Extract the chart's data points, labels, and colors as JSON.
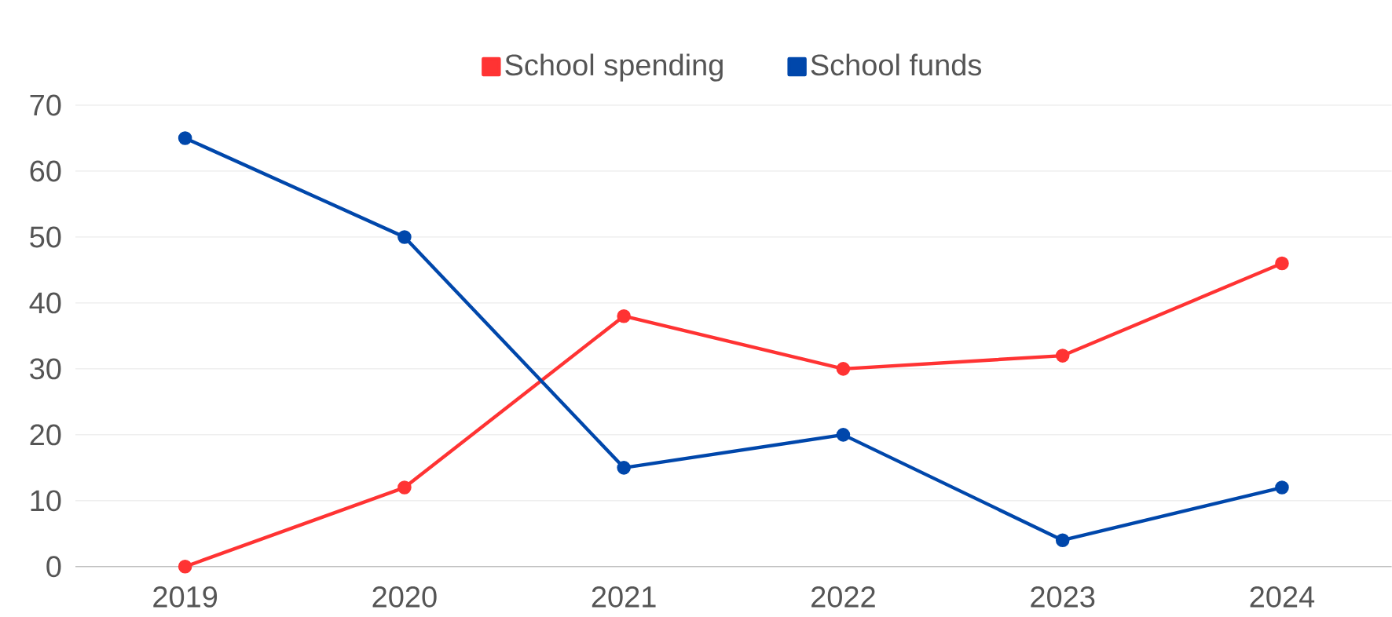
{
  "chart_data": {
    "type": "line",
    "categories": [
      "2019",
      "2020",
      "2021",
      "2022",
      "2023",
      "2024"
    ],
    "series": [
      {
        "name": "School spending",
        "color": "#ff3333",
        "values": [
          0,
          12,
          38,
          30,
          32,
          46
        ]
      },
      {
        "name": "School funds",
        "color": "#0047ab",
        "values": [
          65,
          50,
          15,
          20,
          4,
          12
        ]
      }
    ],
    "ylim": [
      0,
      70
    ],
    "yticks": [
      0,
      10,
      20,
      30,
      40,
      50,
      60,
      70
    ],
    "grid": "y",
    "legend": "top",
    "marker": "circle"
  }
}
